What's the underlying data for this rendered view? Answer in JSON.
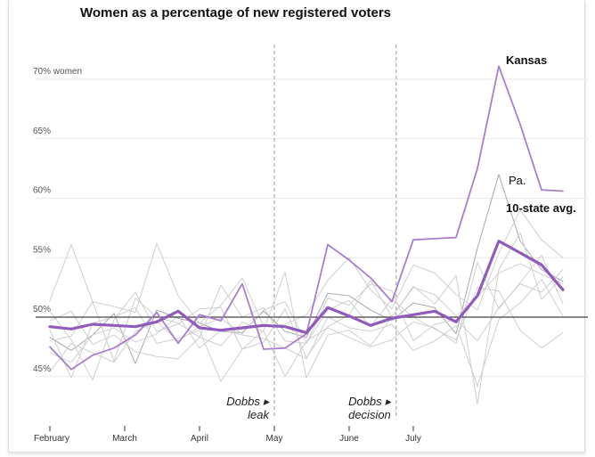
{
  "chart_data": {
    "type": "line",
    "title": "Women as a percentage of new registered voters",
    "xlabel": "",
    "ylabel": "",
    "y_ticks": [
      "70% women",
      "65%",
      "60%",
      "55%",
      "50%",
      "45%"
    ],
    "y_tick_values": [
      70,
      65,
      60,
      55,
      50,
      45
    ],
    "ylim": [
      41.5,
      72
    ],
    "x_month_labels": [
      "February",
      "March",
      "April",
      "May",
      "June",
      "July"
    ],
    "x_month_weeks": [
      0,
      3.5,
      7,
      10.5,
      14,
      17
    ],
    "reference_line": 50,
    "annotations": [
      {
        "lines": [
          "Dobbs ▸",
          "leak"
        ],
        "week": 10.5
      },
      {
        "lines": [
          "Dobbs ▸",
          "decision"
        ],
        "week": 16.2
      }
    ],
    "series": [
      {
        "name": "Kansas",
        "role": "highlight",
        "color": "#a77fd0",
        "values": [
          47.5,
          45.6,
          46.8,
          47.4,
          48.5,
          50.4,
          47.8,
          50.2,
          49.7,
          52.8,
          47.3,
          47.4,
          48.6,
          56.1,
          54.8,
          53.3,
          51.3,
          56.5,
          56.6,
          56.7,
          62.5,
          71.1,
          66.2,
          60.7,
          60.6
        ]
      },
      {
        "name": "Pa.",
        "role": "highlight-gray",
        "color": "#b0b0b0",
        "values": [
          48.3,
          47.2,
          48.5,
          50.3,
          46.1,
          50.6,
          49.9,
          49.5,
          48.8,
          48.7,
          50.5,
          48.8,
          48.3,
          52.0,
          51.8,
          50.6,
          49.7,
          51.2,
          50.8,
          48.6,
          55.8,
          62.0,
          56.4,
          54.0,
          53.0
        ]
      },
      {
        "name": "10-state avg.",
        "role": "average",
        "color": "#8f5cbc",
        "values": [
          49.2,
          49.0,
          49.4,
          49.3,
          49.2,
          49.6,
          50.5,
          49.1,
          48.9,
          49.1,
          49.3,
          49.2,
          48.7,
          50.8,
          50.1,
          49.3,
          49.9,
          50.2,
          50.5,
          49.6,
          51.8,
          56.4,
          55.4,
          54.4,
          52.3
        ]
      },
      {
        "name": "",
        "role": "background",
        "color": "#cfcfcf",
        "values": [
          51.4,
          56.1,
          51.3,
          50.9,
          50.4,
          56.2,
          51.8,
          49.5,
          51.0,
          53.3,
          49.2,
          49.4,
          50.2,
          53.1,
          55.0,
          52.3,
          50.7,
          54.4,
          53.7,
          51.9,
          50.6,
          55.4,
          59.0,
          56.5,
          55.0
        ]
      },
      {
        "name": "",
        "role": "background",
        "color": "#cfcfcf",
        "values": [
          47.0,
          46.2,
          48.5,
          49.1,
          47.9,
          48.6,
          50.1,
          47.4,
          48.9,
          48.5,
          48.2,
          47.4,
          46.5,
          50.0,
          49.1,
          48.8,
          49.4,
          47.2,
          48.0,
          49.3,
          44.2,
          49.8,
          51.2,
          53.2,
          50.1
        ]
      },
      {
        "name": "",
        "role": "background",
        "color": "#cfcfcf",
        "values": [
          45.4,
          47.8,
          47.0,
          46.2,
          48.8,
          49.6,
          48.0,
          49.2,
          49.9,
          48.6,
          50.6,
          51.3,
          47.8,
          50.6,
          51.4,
          49.2,
          51.5,
          50.0,
          49.0,
          48.1,
          52.5,
          52.2,
          48.9,
          47.4,
          48.7
        ]
      },
      {
        "name": "",
        "role": "background",
        "color": "#cfcfcf",
        "values": [
          49.7,
          50.5,
          47.7,
          48.5,
          47.1,
          46.7,
          46.5,
          48.3,
          47.6,
          49.6,
          48.8,
          45.0,
          48.0,
          49.1,
          48.3,
          47.5,
          48.1,
          49.6,
          49.1,
          47.8,
          54.6,
          50.7,
          52.9,
          55.2,
          51.1
        ]
      },
      {
        "name": "",
        "role": "background",
        "color": "#cfcfcf",
        "values": [
          50.5,
          48.1,
          44.7,
          49.8,
          52.1,
          48.8,
          49.4,
          50.7,
          50.8,
          47.3,
          47.9,
          50.7,
          46.6,
          49.2,
          50.2,
          53.1,
          50.0,
          52.5,
          51.9,
          50.1,
          51.7,
          53.7,
          54.5,
          53.6,
          52.8
        ]
      },
      {
        "name": "",
        "role": "background",
        "color": "#cfcfcf",
        "values": [
          48.9,
          44.9,
          49.5,
          50.0,
          50.8,
          47.8,
          48.2,
          48.9,
          44.6,
          47.3,
          48.9,
          53.8,
          44.9,
          48.5,
          48.9,
          47.6,
          50.0,
          52.6,
          51.1,
          53.5,
          42.7,
          54.0,
          57.1,
          51.5,
          53.4
        ]
      },
      {
        "name": "",
        "role": "background",
        "color": "#cfcfcf",
        "values": [
          48.0,
          48.4,
          51.3,
          46.3,
          51.6,
          50.0,
          49.5,
          48.3,
          52.7,
          50.0,
          50.8,
          48.0,
          47.8,
          51.6,
          51.0,
          52.8,
          52.2,
          48.0,
          49.4,
          49.8,
          48.0,
          50.8,
          52.8,
          52.1,
          54.0
        ]
      }
    ]
  }
}
